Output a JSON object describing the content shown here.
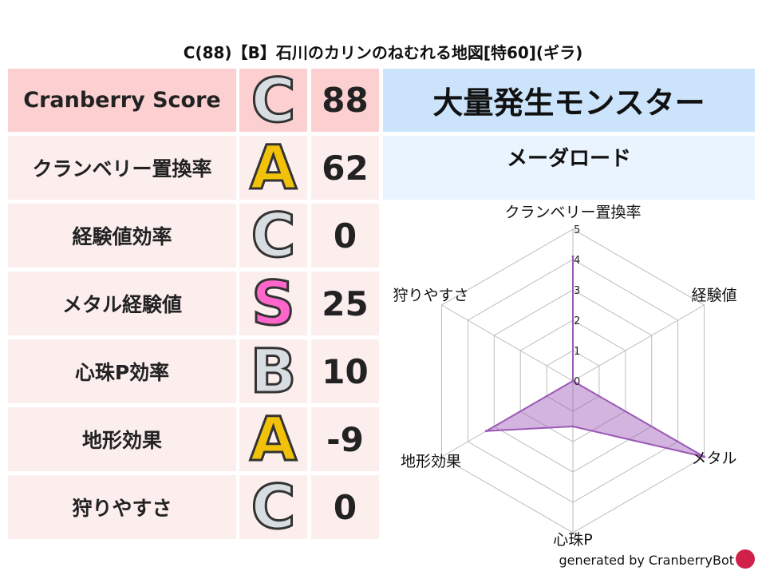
{
  "title": "C(88)【B】石川のカリンのねむれる地図[特60](ギラ)",
  "rows": [
    {
      "label": "Cranberry Score",
      "grade": "C",
      "value": "88"
    },
    {
      "label": "クランベリー置換率",
      "grade": "A",
      "value": "62"
    },
    {
      "label": "経験値効率",
      "grade": "C",
      "value": "0"
    },
    {
      "label": "メタル経験値",
      "grade": "S",
      "value": "25"
    },
    {
      "label": "心珠P効率",
      "grade": "B",
      "value": "10"
    },
    {
      "label": "地形効果",
      "grade": "A",
      "value": "-9"
    },
    {
      "label": "狩りやすさ",
      "grade": "C",
      "value": "0"
    }
  ],
  "monster_header": "大量発生モンスター",
  "monster_name": "メーダロード",
  "grade_colors": {
    "C": "#d8dde2",
    "A": "#f2c20a",
    "B": "#d8dde2",
    "S": "#ff66cc"
  },
  "chart_data": {
    "type": "radar",
    "axes": [
      "クランベリー置換率",
      "経験値",
      "メタル",
      "心珠P",
      "地形効果",
      "狩りやすさ"
    ],
    "ticks": [
      "0",
      "1",
      "2",
      "3",
      "4",
      "5"
    ],
    "range": [
      0,
      5
    ],
    "values": [
      4.1,
      0,
      5,
      1.5,
      3.3,
      0
    ],
    "color": "#9b59b6"
  },
  "footer": "generated by CranberryBot"
}
